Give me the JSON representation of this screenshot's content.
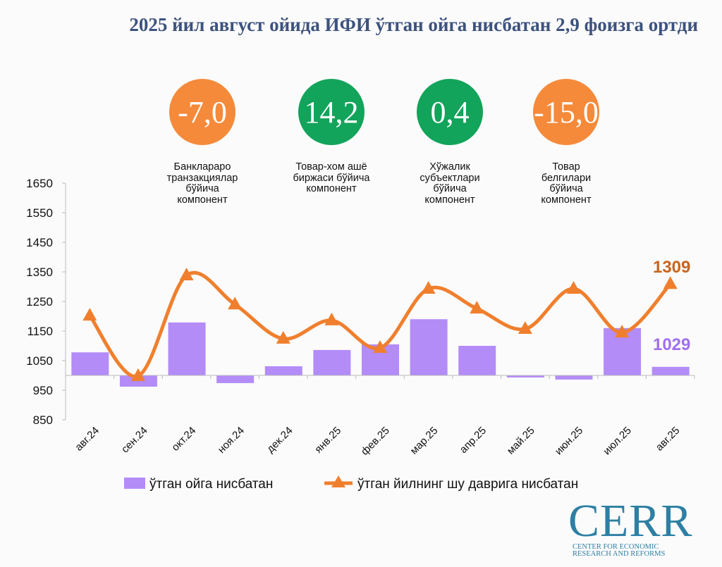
{
  "title": "2025 йил август ойида ИФИ ўтган ойга нисбатан 2,9 фоизга ортди",
  "kpis": [
    {
      "value": "-7,0",
      "label": "Банклараро транзакциялар бўйича компонент",
      "color": "#f58a3a"
    },
    {
      "value": "14,2",
      "label": "Товар-хом ашё биржаси бўйича компонент",
      "color": "#12a45a"
    },
    {
      "value": "0,4",
      "label": "Хўжалик субъектлари бўйича компонент",
      "color": "#12a45a"
    },
    {
      "value": "-15,0",
      "label": "Товар белгилари бўйича компонент",
      "color": "#f58a3a"
    }
  ],
  "chart_data": {
    "type": "bar+line",
    "categories": [
      "авг.24",
      "сен.24",
      "окт.24",
      "ноя.24",
      "дек.24",
      "янв.25",
      "фев.25",
      "мар.25",
      "апр.25",
      "май.25",
      "июн.25",
      "июл.25",
      "авг.25"
    ],
    "ylim": [
      850,
      1650
    ],
    "yticks": [
      850,
      950,
      1050,
      1150,
      1250,
      1350,
      1450,
      1550,
      1650
    ],
    "bar_base": 1000,
    "grid": false,
    "legend_position": "bottom",
    "series": [
      {
        "name": "ўтган ойга нисбатан",
        "type": "bar",
        "color": "#b38cf8",
        "values": [
          1078,
          962,
          1179,
          974,
          1031,
          1086,
          1105,
          1190,
          1100,
          993,
          986,
          1160,
          1029
        ]
      },
      {
        "name": "ўтган йилнинг шу даврига нисбатан",
        "type": "line",
        "marker": "triangle",
        "color": "#f07f2d",
        "values": [
          1202,
          998,
          1338,
          1240,
          1124,
          1186,
          1093,
          1293,
          1226,
          1157,
          1293,
          1145,
          1309
        ]
      }
    ],
    "annotations": [
      {
        "series": "line",
        "text": "1309",
        "color": "#c8651e"
      },
      {
        "series": "bar",
        "text": "1029",
        "color": "#a070f0"
      }
    ]
  },
  "logo": {
    "word": "CERR",
    "sub1": "CENTER FOR ECONOMIC",
    "sub2": "RESEARCH AND REFORMS"
  }
}
